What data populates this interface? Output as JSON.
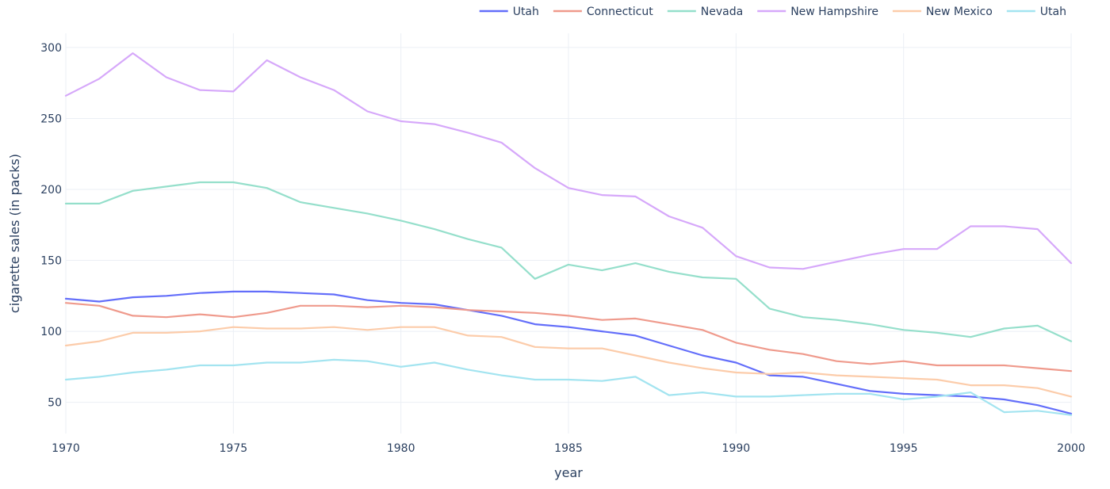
{
  "chart_data": {
    "type": "line",
    "xlabel": "year",
    "ylabel": "cigarette sales (in packs)",
    "xlim": [
      1970,
      2000
    ],
    "ylim": [
      28,
      310
    ],
    "x_ticks": [
      1970,
      1975,
      1980,
      1985,
      1990,
      1995,
      2000
    ],
    "y_ticks": [
      50,
      100,
      150,
      200,
      250,
      300
    ],
    "grid": true,
    "legend_position": "top-right",
    "x": [
      1970,
      1971,
      1972,
      1973,
      1974,
      1975,
      1976,
      1977,
      1978,
      1979,
      1980,
      1981,
      1982,
      1983,
      1984,
      1985,
      1986,
      1987,
      1988,
      1989,
      1990,
      1991,
      1992,
      1993,
      1994,
      1995,
      1996,
      1997,
      1998,
      1999,
      2000
    ],
    "series": [
      {
        "name": "Utah",
        "color": "#636efa",
        "values": [
          123,
          121,
          124,
          125,
          127,
          128,
          128,
          127,
          126,
          122,
          120,
          119,
          115,
          111,
          105,
          103,
          100,
          97,
          90,
          83,
          78,
          69,
          68,
          63,
          58,
          56,
          55,
          54,
          52,
          48,
          42
        ]
      },
      {
        "name": "Connecticut",
        "color": "#ef9a8c",
        "values": [
          120,
          118,
          111,
          110,
          112,
          110,
          113,
          118,
          118,
          117,
          118,
          117,
          115,
          114,
          113,
          111,
          108,
          109,
          105,
          101,
          92,
          87,
          84,
          79,
          77,
          79,
          76,
          76,
          76,
          74,
          72
        ]
      },
      {
        "name": "Nevada",
        "color": "#95dfcb",
        "values": [
          190,
          190,
          199,
          202,
          205,
          205,
          201,
          191,
          187,
          183,
          178,
          172,
          165,
          159,
          137,
          147,
          143,
          148,
          142,
          138,
          137,
          116,
          110,
          108,
          105,
          101,
          99,
          96,
          102,
          104,
          93
        ]
      },
      {
        "name": "New Hampshire",
        "color": "#d6a8fa",
        "values": [
          266,
          278,
          296,
          279,
          270,
          269,
          291,
          279,
          270,
          255,
          248,
          246,
          240,
          233,
          215,
          201,
          196,
          195,
          181,
          173,
          153,
          145,
          144,
          149,
          154,
          158,
          158,
          174,
          174,
          172,
          148
        ]
      },
      {
        "name": "New Mexico",
        "color": "#fcccaa",
        "values": [
          90,
          93,
          99,
          99,
          100,
          103,
          102,
          102,
          103,
          101,
          103,
          103,
          97,
          96,
          89,
          88,
          88,
          83,
          78,
          74,
          71,
          70,
          71,
          69,
          68,
          67,
          66,
          62,
          62,
          60,
          54
        ]
      },
      {
        "name": "Utah",
        "color": "#a3e4f0",
        "values": [
          66,
          68,
          71,
          73,
          76,
          76,
          78,
          78,
          80,
          79,
          75,
          78,
          73,
          69,
          66,
          66,
          65,
          68,
          55,
          57,
          54,
          54,
          55,
          56,
          56,
          52,
          54,
          57,
          43,
          44,
          41
        ]
      }
    ]
  }
}
